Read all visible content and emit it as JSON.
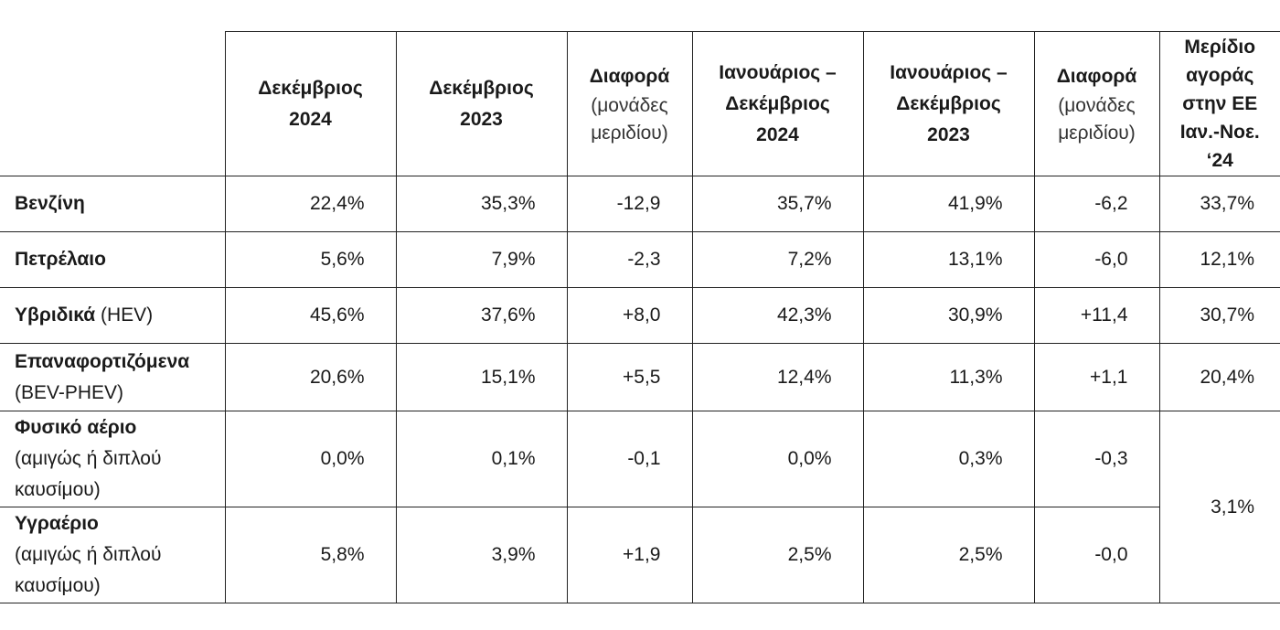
{
  "header": {
    "col1": [
      "Δεκέμβριος",
      "2024"
    ],
    "col2": [
      "Δεκέμβριος",
      "2023"
    ],
    "col3": {
      "title": "Διαφορά",
      "sub": [
        "(μονάδες",
        "μεριδίου)"
      ]
    },
    "col4": [
      "Ιανουάριος –",
      "Δεκέμβριος",
      "2024"
    ],
    "col5": [
      "Ιανουάριος –",
      "Δεκέμβριος",
      "2023"
    ],
    "col6": {
      "title": "Διαφορά",
      "sub": [
        "(μονάδες",
        "μεριδίου)"
      ]
    },
    "col7": [
      "Μερίδιο",
      "αγοράς",
      "στην ΕΕ",
      "Ιαν.-Νοε.",
      "‘24"
    ]
  },
  "rows": [
    {
      "label": "Βενζίνη",
      "label_extra": "",
      "values": [
        "22,4%",
        "35,3%",
        "-12,9",
        "35,7%",
        "41,9%",
        "-6,2",
        "33,7%"
      ]
    },
    {
      "label": "Πετρέλαιο",
      "label_extra": "",
      "values": [
        "5,6%",
        "7,9%",
        "-2,3",
        "7,2%",
        "13,1%",
        "-6,0",
        "12,1%"
      ]
    },
    {
      "label": "Υβριδικά",
      "label_extra": " (HEV)",
      "values": [
        "45,6%",
        "37,6%",
        "+8,0",
        "42,3%",
        "30,9%",
        "+11,4",
        "30,7%"
      ]
    },
    {
      "label": "Επαναφορτιζόμενα",
      "label_extra": "(BEV-PHEV)",
      "values": [
        "20,6%",
        "15,1%",
        "+5,5",
        "12,4%",
        "11,3%",
        "+1,1",
        "20,4%"
      ]
    },
    {
      "label": "Φυσικό αέριο",
      "label_extra_lines": [
        "(αμιγώς ή διπλού",
        "καυσίμου)"
      ],
      "values": [
        "0,0%",
        "0,1%",
        "-0,1",
        "0,0%",
        "0,3%",
        "-0,3"
      ]
    },
    {
      "label": "Υγραέριο",
      "label_extra_lines": [
        "(αμιγώς ή διπλού",
        "καυσίμου)"
      ],
      "values": [
        "5,8%",
        "3,9%",
        "+1,9",
        "2,5%",
        "2,5%",
        "-0,0"
      ]
    }
  ],
  "merged_gas_share": "3,1%"
}
